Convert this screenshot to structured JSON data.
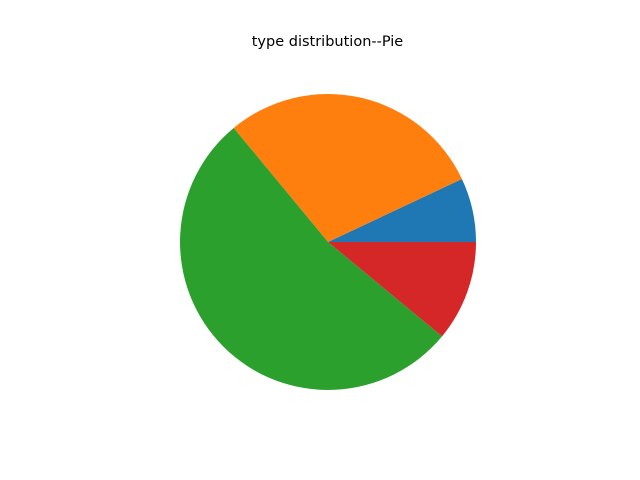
{
  "chart_data": {
    "type": "pie",
    "title": "type distribution--Pie",
    "values": [
      7,
      29,
      53,
      11
    ],
    "colors": [
      "#1f77b4",
      "#ff7f0e",
      "#2ca02c",
      "#d62728"
    ],
    "start_angle_deg": 0,
    "direction": "counterclockwise",
    "legend": false
  }
}
